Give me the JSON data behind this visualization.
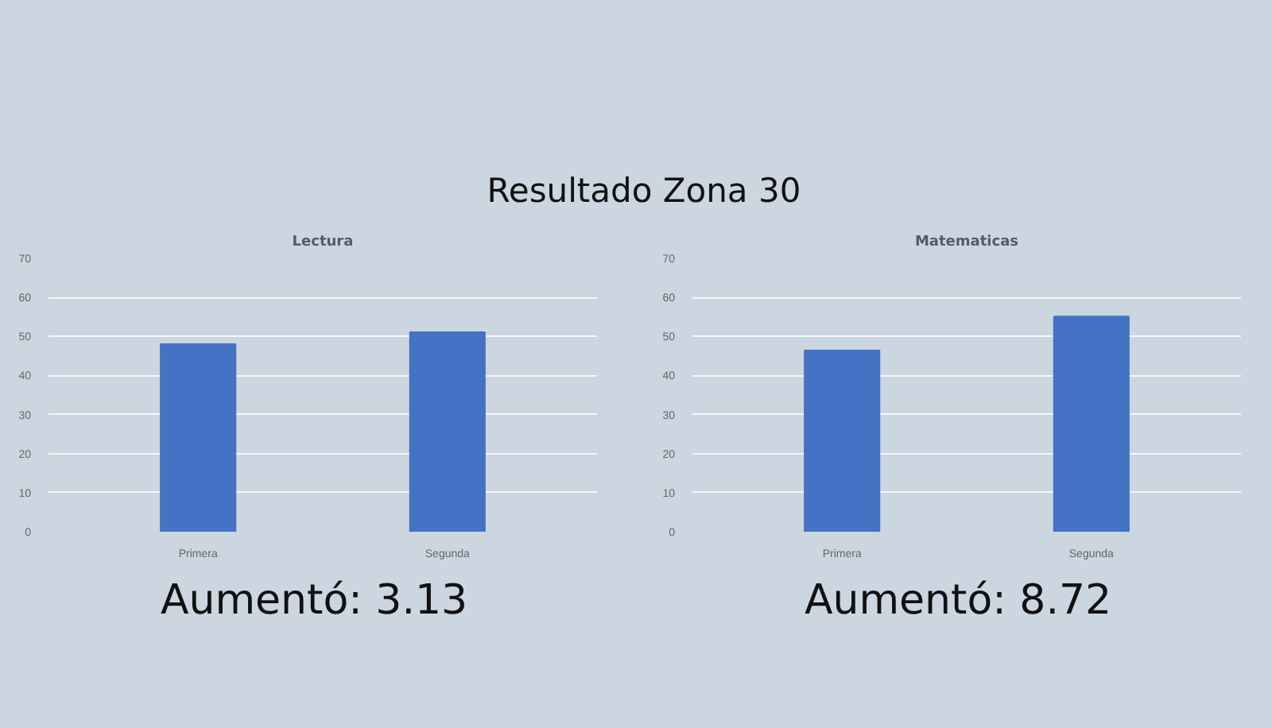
{
  "chart_data": [
    {
      "type": "bar",
      "title": "Lectura",
      "categories": [
        "Primera",
        "Segunda"
      ],
      "values": [
        48.0,
        51.1
      ],
      "color": "#4472c4",
      "ylim": [
        0,
        70
      ],
      "yticks": [
        0,
        10,
        20,
        30,
        40,
        50,
        60,
        70
      ],
      "grid": "y",
      "annotations": [
        "Resultado Zona 30",
        "Aumentó:  3.13"
      ]
    },
    {
      "type": "bar",
      "title": "Matematicas",
      "categories": [
        "Primera",
        "Segunda"
      ],
      "values": [
        46.4,
        55.1
      ],
      "color": "#4472c4",
      "ylim": [
        0,
        70
      ],
      "yticks": [
        0,
        10,
        20,
        30,
        40,
        50,
        60,
        70
      ],
      "grid": "y",
      "annotations": [
        "Aumentó:  8.72"
      ]
    }
  ]
}
